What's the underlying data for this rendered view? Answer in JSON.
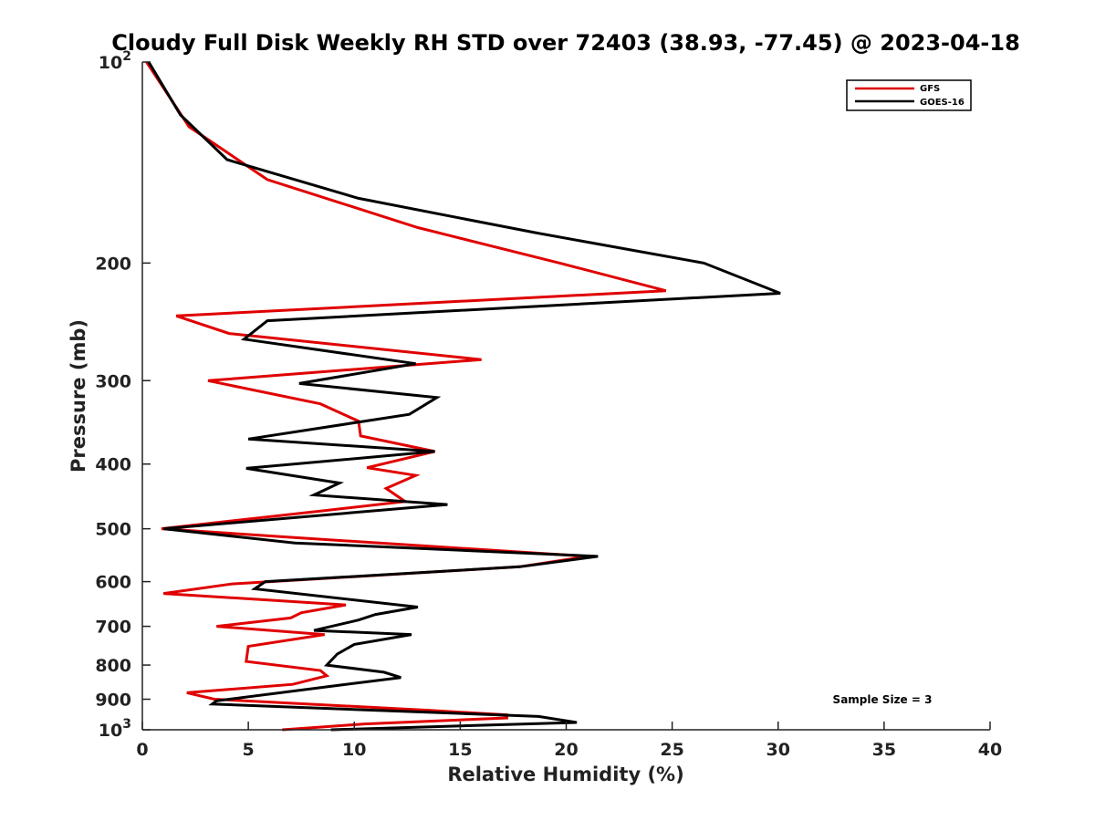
{
  "chart_data": {
    "type": "line",
    "title": "Cloudy Full Disk Weekly RH STD over 72403 (38.93, -77.45) @ 2023-04-18",
    "xlabel": "Relative Humidity (%)",
    "ylabel": "Pressure (mb)",
    "xlim": [
      0,
      40
    ],
    "ylim": [
      100,
      1000
    ],
    "yscale": "log",
    "y_reversed": true,
    "xticks": [
      "0",
      "5",
      "10",
      "15",
      "20",
      "25",
      "30",
      "35",
      "40"
    ],
    "yticks": [
      {
        "value": 100,
        "base": "10",
        "exp": "2"
      },
      {
        "value": 200,
        "label": "200"
      },
      {
        "value": 300,
        "label": "300"
      },
      {
        "value": 400,
        "label": "400"
      },
      {
        "value": 500,
        "label": "500"
      },
      {
        "value": 600,
        "label": "600"
      },
      {
        "value": 700,
        "label": "700"
      },
      {
        "value": 800,
        "label": "800"
      },
      {
        "value": 900,
        "label": "900"
      },
      {
        "value": 1000,
        "base": "10",
        "exp": "3"
      }
    ],
    "grid": false,
    "legend_position": "top-right",
    "annotation": "Sample Size = 3",
    "series": [
      {
        "name": "GFS",
        "color": "#e00000",
        "points": [
          [
            0.2,
            100
          ],
          [
            2.2,
            125
          ],
          [
            5.9,
            150
          ],
          [
            13.0,
            177
          ],
          [
            19.7,
            200
          ],
          [
            24.7,
            220
          ],
          [
            1.6,
            240
          ],
          [
            4.1,
            255
          ],
          [
            16.0,
            279
          ],
          [
            3.1,
            300
          ],
          [
            8.4,
            325
          ],
          [
            10.2,
            345
          ],
          [
            10.3,
            363
          ],
          [
            13.8,
            383
          ],
          [
            10.6,
            405
          ],
          [
            12.9,
            416
          ],
          [
            11.5,
            435
          ],
          [
            12.4,
            455
          ],
          [
            8.5,
            470
          ],
          [
            0.9,
            500
          ],
          [
            7.0,
            515
          ],
          [
            21.0,
            550
          ],
          [
            17.8,
            570
          ],
          [
            4.2,
            605
          ],
          [
            1.0,
            625
          ],
          [
            9.6,
            650
          ],
          [
            7.5,
            668
          ],
          [
            7.0,
            680
          ],
          [
            3.5,
            700
          ],
          [
            8.6,
            720
          ],
          [
            5.0,
            750
          ],
          [
            4.9,
            790
          ],
          [
            8.4,
            815
          ],
          [
            8.7,
            830
          ],
          [
            7.1,
            855
          ],
          [
            2.1,
            880
          ],
          [
            3.4,
            900
          ],
          [
            13.5,
            935
          ],
          [
            17.2,
            950
          ],
          [
            17.2,
            960
          ],
          [
            10.5,
            980
          ],
          [
            6.6,
            1000
          ]
        ]
      },
      {
        "name": "GOES-16",
        "color": "#000000",
        "points": [
          [
            0.3,
            100
          ],
          [
            1.8,
            120
          ],
          [
            4.0,
            140
          ],
          [
            10.2,
            160
          ],
          [
            18.5,
            180
          ],
          [
            26.5,
            200
          ],
          [
            30.1,
            222
          ],
          [
            5.9,
            244
          ],
          [
            4.8,
            260
          ],
          [
            12.9,
            283
          ],
          [
            7.4,
            303
          ],
          [
            13.9,
            318
          ],
          [
            12.6,
            337
          ],
          [
            5.0,
            367
          ],
          [
            13.8,
            383
          ],
          [
            4.9,
            406
          ],
          [
            9.3,
            427
          ],
          [
            8.1,
            445
          ],
          [
            14.4,
            460
          ],
          [
            1.0,
            500
          ],
          [
            7.2,
            525
          ],
          [
            21.5,
            550
          ],
          [
            17.8,
            570
          ],
          [
            5.8,
            600
          ],
          [
            5.3,
            615
          ],
          [
            13.0,
            655
          ],
          [
            11.0,
            672
          ],
          [
            10.2,
            685
          ],
          [
            8.1,
            710
          ],
          [
            12.7,
            720
          ],
          [
            10.0,
            745
          ],
          [
            9.2,
            770
          ],
          [
            8.7,
            800
          ],
          [
            11.4,
            820
          ],
          [
            12.2,
            835
          ],
          [
            9.6,
            855
          ],
          [
            3.5,
            905
          ],
          [
            3.3,
            915
          ],
          [
            18.7,
            955
          ],
          [
            20.5,
            975
          ],
          [
            8.9,
            1000
          ]
        ]
      }
    ]
  }
}
